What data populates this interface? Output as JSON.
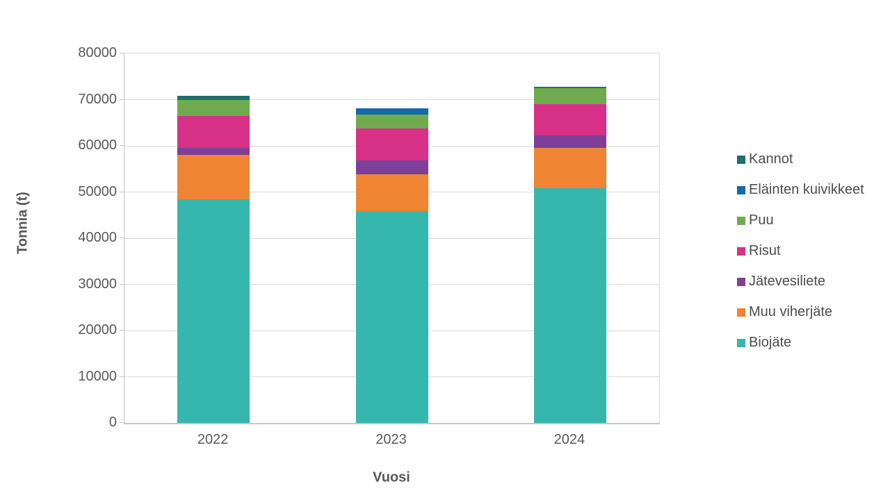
{
  "chart_data": {
    "type": "bar",
    "stacked": true,
    "title": "",
    "xlabel": "Vuosi",
    "ylabel": "Tonnia (t)",
    "categories": [
      "2022",
      "2023",
      "2024"
    ],
    "series": [
      {
        "name": "Biojäte",
        "color": "#36b7ae",
        "values": [
          48400,
          45900,
          50800
        ]
      },
      {
        "name": "Muu viherjäte",
        "color": "#ef8533",
        "values": [
          9700,
          8000,
          8700
        ]
      },
      {
        "name": "Jätevesiliete",
        "color": "#7d3f98",
        "values": [
          1400,
          3000,
          2700
        ]
      },
      {
        "name": "Risut",
        "color": "#d63087",
        "values": [
          7000,
          6800,
          6800
        ]
      },
      {
        "name": "Puu",
        "color": "#6faa4e",
        "values": [
          3500,
          3100,
          3500
        ]
      },
      {
        "name": "Eläinten kuivikkeet",
        "color": "#1469a8",
        "values": [
          0,
          1250,
          0
        ]
      },
      {
        "name": "Kannot",
        "color": "#1e6f6d",
        "values": [
          850,
          0,
          300
        ]
      }
    ],
    "legend_order": [
      "Kannot",
      "Eläinten kuivikkeet",
      "Puu",
      "Risut",
      "Jätevesiliete",
      "Muu viherjäte",
      "Biojäte"
    ],
    "legend_position": "right",
    "grid": true,
    "ylim": [
      0,
      80000
    ],
    "yticks": [
      0,
      10000,
      20000,
      30000,
      40000,
      50000,
      60000,
      70000,
      80000
    ],
    "ytick_labels": [
      "0",
      "10000",
      "20000",
      "30000",
      "40000",
      "50000",
      "60000",
      "70000",
      "80000"
    ]
  },
  "colors": {
    "gridline": "#d9d9d9",
    "axis_line": "#c3c3c3",
    "tick_text": "#595959",
    "legend_text": "#4d4d4d",
    "axis_title_text": "#585858",
    "background": "#ffffff"
  }
}
